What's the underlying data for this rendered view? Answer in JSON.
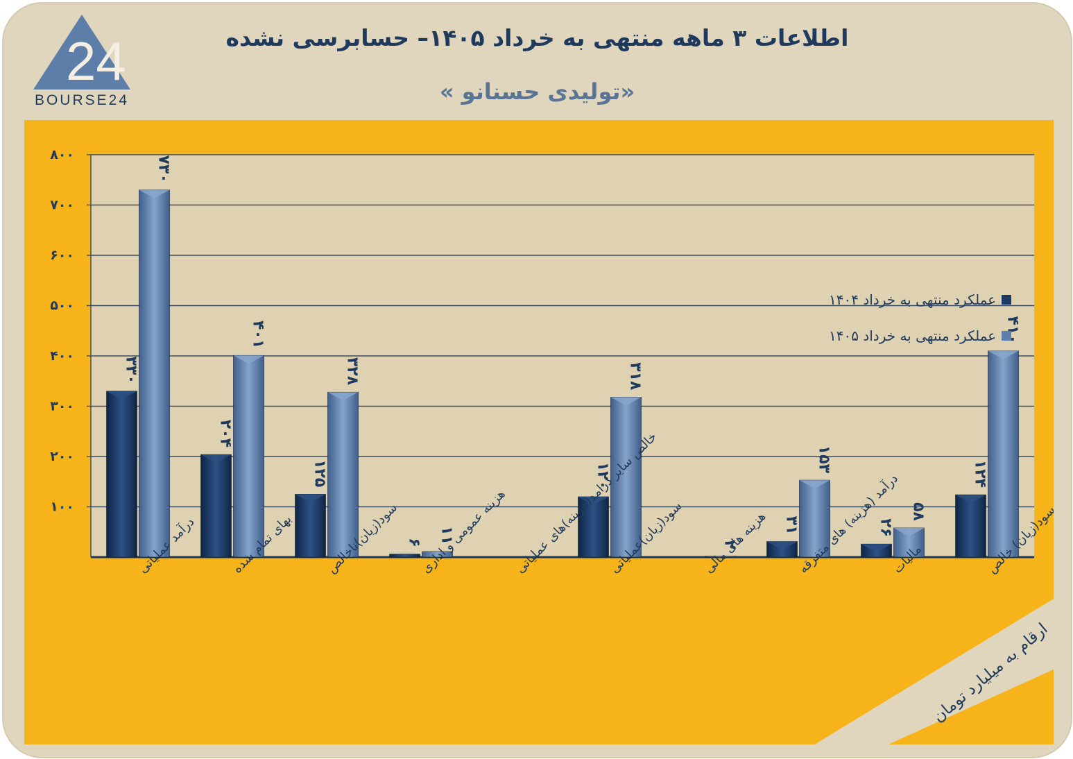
{
  "title": "اطلاعات ۳ ماهه منتهی به خرداد ۱۴۰۵– حسابرسی نشده",
  "subtitle": "«تولیدی حسنانو »",
  "logo": {
    "number": "24",
    "text": "BOURSE24"
  },
  "note": "ارقام به میلیارد تومان",
  "colors": {
    "frame": "#e0d6bd",
    "panel": "#f6b31a",
    "series_1404": "#1b3a63",
    "series_1405": "#5e7fac",
    "text": "#1f3a5c"
  },
  "chart_data": {
    "type": "bar",
    "categories": [
      "درآمد عملیاتی",
      "بهای تمام شده",
      "سود(زیان)ناخالص",
      "هزینه عمومی و اداری",
      "خالص سایر درامد(هزینه)های عملیاتی",
      "سود(زیان)عملیاتی",
      "هزینه های مالی",
      "درآمد (هزینه) های متفرقه",
      "مالیات",
      "سود(زیان) خالص"
    ],
    "series": [
      {
        "name": "عملکرد منتهی به خرداد ۱۴۰۴",
        "values": [
          330,
          204,
          125,
          6,
          null,
          120,
          null,
          31,
          26,
          124
        ],
        "labels": [
          "۳۳۰",
          "۲۰۴",
          "۱۲۵",
          "۶",
          "",
          "۱۲۰",
          "",
          "۳۱",
          "۲۶",
          "۱۲۴"
        ]
      },
      {
        "name": "عملکرد منتهی به خرداد ۱۴۰۵",
        "values": [
          730,
          401,
          328,
          11,
          null,
          318,
          2,
          153,
          58,
          410
        ],
        "labels": [
          "۷۳۰",
          "۴۰۱",
          "۳۲۸",
          "۱۱",
          "",
          "۳۱۸",
          "۲",
          "۱۵۳",
          "۵۸",
          "۴۱۰"
        ]
      }
    ],
    "yticks": [
      100,
      200,
      300,
      400,
      500,
      600,
      700,
      800
    ],
    "ytick_labels": [
      "۱۰۰",
      "۲۰۰",
      "۳۰۰",
      "۴۰۰",
      "۵۰۰",
      "۶۰۰",
      "۷۰۰",
      "۸۰۰"
    ],
    "ylim": [
      0,
      800
    ],
    "grid": true,
    "legend_position": "top-right"
  }
}
